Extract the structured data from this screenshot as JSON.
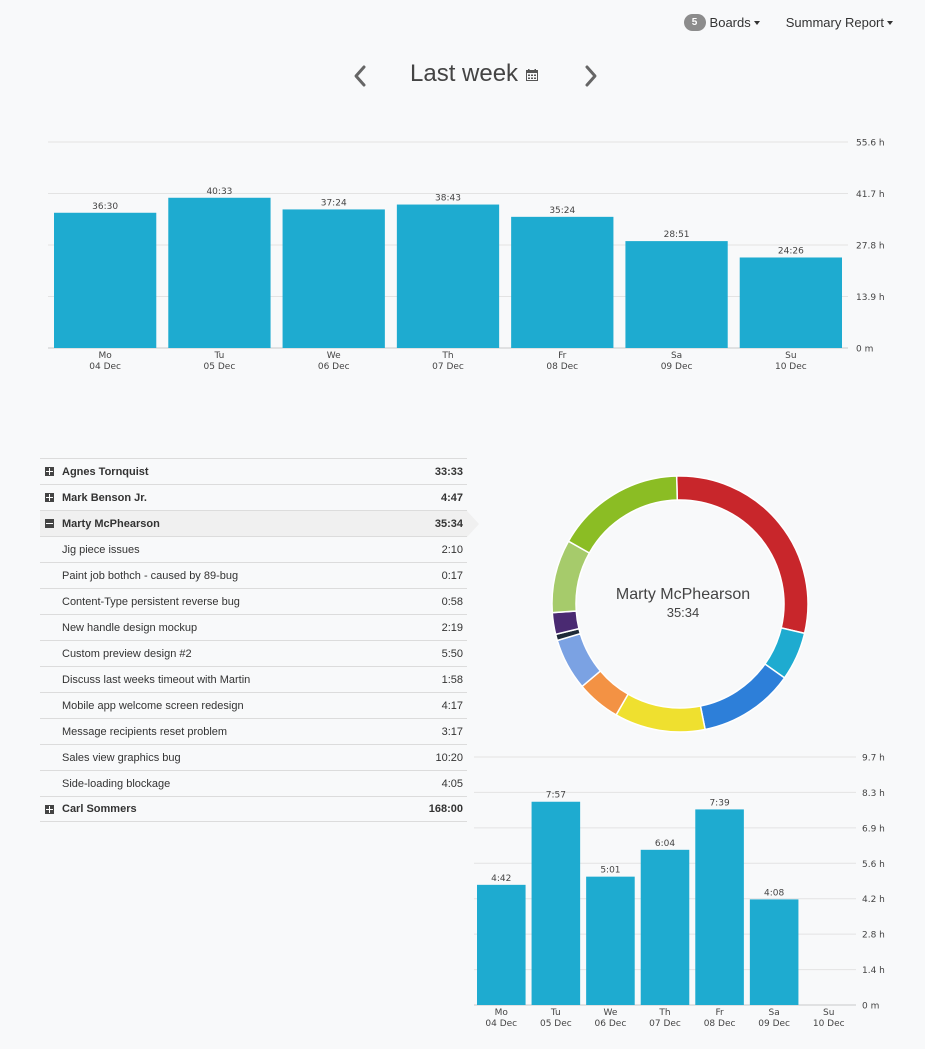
{
  "header": {
    "boards_count": "5",
    "boards_label": "Boards",
    "report_label": "Summary Report"
  },
  "period": {
    "title": "Last week",
    "calendar_icon": "calendar-icon",
    "prev_icon": "chevron-left-icon",
    "next_icon": "chevron-right-icon"
  },
  "colors": {
    "bar": "#1eabd0",
    "grid": "#e3e3e3",
    "axis": "#c9c9c9"
  },
  "chart_data": [
    {
      "type": "bar",
      "categories": [
        "Mo\n04 Dec",
        "Tu\n05 Dec",
        "We\n06 Dec",
        "Th\n07 Dec",
        "Fr\n08 Dec",
        "Sa\n09 Dec",
        "Su\n10 Dec"
      ],
      "values": [
        36.5,
        40.55,
        37.4,
        38.72,
        35.4,
        28.85,
        24.43
      ],
      "data_labels": [
        "36:30",
        "40:33",
        "37:24",
        "38:43",
        "35:24",
        "28:51",
        "24:26"
      ],
      "yticks": [
        "0 m",
        "13.9 h",
        "27.8 h",
        "41.7 h",
        "55.6 h"
      ],
      "ylim": [
        0,
        55.6
      ],
      "grid": true,
      "title": "",
      "xlabel": "",
      "ylabel": ""
    },
    {
      "type": "pie",
      "center_label": "Marty McPhearson",
      "center_value": "35:34",
      "slices": [
        {
          "value": 10.33,
          "color": "#c8262b"
        },
        {
          "value": 2.17,
          "color": "#1eabd0"
        },
        {
          "value": 4.28,
          "color": "#2d7fd9"
        },
        {
          "value": 4.07,
          "color": "#efe02f"
        },
        {
          "value": 1.97,
          "color": "#f39244"
        },
        {
          "value": 2.32,
          "color": "#7ba2e3"
        },
        {
          "value": 0.28,
          "color": "#1e2a38"
        },
        {
          "value": 0.97,
          "color": "#4a2a72"
        },
        {
          "value": 3.28,
          "color": "#a6cb6b"
        },
        {
          "value": 5.83,
          "color": "#8bbd24"
        }
      ]
    },
    {
      "type": "bar",
      "categories": [
        "Mo\n04 Dec",
        "Tu\n05 Dec",
        "We\n06 Dec",
        "Th\n07 Dec",
        "Fr\n08 Dec",
        "Sa\n09 Dec",
        "Su\n10 Dec"
      ],
      "values": [
        4.7,
        7.95,
        5.02,
        6.07,
        7.65,
        4.13,
        0
      ],
      "data_labels": [
        "4:42",
        "7:57",
        "5:01",
        "6:04",
        "7:39",
        "4:08",
        ""
      ],
      "yticks": [
        "0 m",
        "1.4 h",
        "2.8 h",
        "4.2 h",
        "5.6 h",
        "6.9 h",
        "8.3 h",
        "9.7 h"
      ],
      "ylim": [
        0,
        9.7
      ],
      "grid": true,
      "title": "",
      "xlabel": "",
      "ylabel": ""
    }
  ],
  "tree": [
    {
      "label": "Agnes Tornquist",
      "value": "33:33",
      "expanded": false
    },
    {
      "label": "Mark Benson Jr.",
      "value": "4:47",
      "expanded": false
    },
    {
      "label": "Marty McPhearson",
      "value": "35:34",
      "expanded": true,
      "tasks": [
        {
          "label": "Jig piece issues",
          "value": "2:10"
        },
        {
          "label": "Paint job bothch - caused by 89-bug",
          "value": "0:17"
        },
        {
          "label": "Content-Type persistent reverse bug",
          "value": "0:58"
        },
        {
          "label": "New handle design mockup",
          "value": "2:19"
        },
        {
          "label": "Custom preview design #2",
          "value": "5:50"
        },
        {
          "label": "Discuss last weeks timeout with Martin",
          "value": "1:58"
        },
        {
          "label": "Mobile app welcome screen redesign",
          "value": "4:17"
        },
        {
          "label": "Message recipients reset problem",
          "value": "3:17"
        },
        {
          "label": "Sales view graphics bug",
          "value": "10:20"
        },
        {
          "label": "Side-loading blockage",
          "value": "4:05"
        }
      ]
    },
    {
      "label": "Carl Sommers",
      "value": "168:00",
      "expanded": false
    }
  ]
}
